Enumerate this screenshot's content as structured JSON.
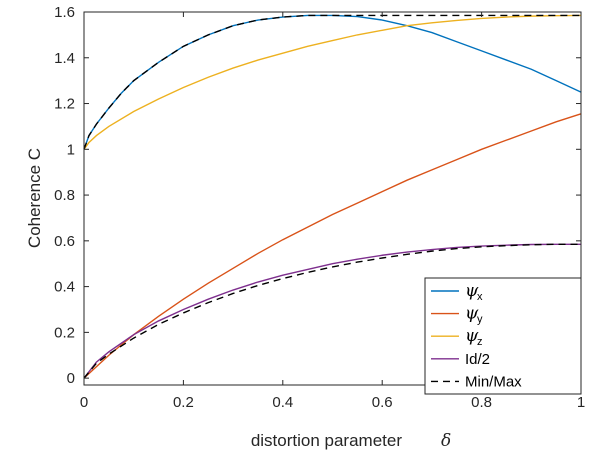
{
  "chart_data": {
    "type": "line",
    "xlabel": "distortion parameter",
    "xlabel_symbol": "δ",
    "ylabel": "Coherence C",
    "xlim": [
      0,
      1
    ],
    "ylim": [
      -0.03,
      1.6
    ],
    "x_ticks": [
      "0",
      "0.2",
      "0.4",
      "0.6",
      "0.8",
      "1"
    ],
    "y_ticks": [
      "0",
      "0.2",
      "0.4",
      "0.6",
      "0.8",
      "1",
      "1.2",
      "1.4",
      "1.6"
    ],
    "legend_position": "bottom-right",
    "grid": false,
    "series": [
      {
        "name": "ψ",
        "subscript": "x",
        "color": "#0072BD",
        "dash": "",
        "x": [
          0,
          0.01,
          0.025,
          0.05,
          0.075,
          0.1,
          0.15,
          0.2,
          0.25,
          0.3,
          0.35,
          0.4,
          0.45,
          0.5,
          0.55,
          0.6,
          0.65,
          0.7,
          0.75,
          0.8,
          0.85,
          0.9,
          0.95,
          1.0
        ],
        "y": [
          1.0,
          1.06,
          1.11,
          1.18,
          1.245,
          1.3,
          1.38,
          1.45,
          1.5,
          1.54,
          1.565,
          1.578,
          1.585,
          1.585,
          1.58,
          1.565,
          1.54,
          1.51,
          1.47,
          1.43,
          1.39,
          1.35,
          1.3,
          1.25
        ]
      },
      {
        "name": "ψ",
        "subscript": "y",
        "color": "#D95319",
        "dash": "",
        "x": [
          0,
          0.05,
          0.1,
          0.15,
          0.2,
          0.25,
          0.3,
          0.35,
          0.4,
          0.45,
          0.5,
          0.55,
          0.6,
          0.65,
          0.7,
          0.75,
          0.8,
          0.85,
          0.9,
          0.95,
          1.0
        ],
        "y": [
          0.0,
          0.1,
          0.19,
          0.27,
          0.345,
          0.415,
          0.48,
          0.545,
          0.605,
          0.66,
          0.715,
          0.765,
          0.815,
          0.865,
          0.91,
          0.955,
          1.0,
          1.04,
          1.08,
          1.12,
          1.155
        ]
      },
      {
        "name": "ψ",
        "subscript": "z",
        "color": "#EDB120",
        "dash": "",
        "x": [
          0,
          0.01,
          0.025,
          0.05,
          0.1,
          0.15,
          0.2,
          0.25,
          0.3,
          0.35,
          0.4,
          0.45,
          0.5,
          0.55,
          0.6,
          0.65,
          0.7,
          0.75,
          0.8,
          0.85,
          0.9,
          0.95,
          1.0
        ],
        "y": [
          1.0,
          1.03,
          1.06,
          1.1,
          1.165,
          1.22,
          1.27,
          1.315,
          1.355,
          1.39,
          1.42,
          1.45,
          1.475,
          1.5,
          1.52,
          1.54,
          1.553,
          1.563,
          1.572,
          1.578,
          1.582,
          1.584,
          1.585
        ]
      },
      {
        "name": "Id/2",
        "color": "#7E2F8E",
        "dash": "",
        "x": [
          0,
          0.025,
          0.05,
          0.1,
          0.15,
          0.2,
          0.25,
          0.3,
          0.35,
          0.4,
          0.45,
          0.5,
          0.55,
          0.6,
          0.65,
          0.7,
          0.75,
          0.8,
          0.85,
          0.9,
          0.95,
          1.0
        ],
        "y": [
          0.0,
          0.07,
          0.115,
          0.19,
          0.25,
          0.3,
          0.345,
          0.385,
          0.42,
          0.45,
          0.475,
          0.5,
          0.52,
          0.537,
          0.551,
          0.562,
          0.571,
          0.577,
          0.581,
          0.584,
          0.585,
          0.585
        ]
      },
      {
        "name": "Min/Max",
        "color": "#000000",
        "dash": "7,5",
        "x": [
          0,
          0.025,
          0.05,
          0.1,
          0.15,
          0.2,
          0.25,
          0.3,
          0.35,
          0.4,
          0.45,
          0.5,
          0.55,
          0.6,
          0.65,
          0.7,
          0.75,
          0.8,
          0.85,
          0.9,
          0.95,
          1.0
        ],
        "y": [
          0.0,
          0.065,
          0.105,
          0.175,
          0.235,
          0.285,
          0.33,
          0.37,
          0.405,
          0.435,
          0.462,
          0.486,
          0.507,
          0.525,
          0.541,
          0.555,
          0.566,
          0.574,
          0.579,
          0.583,
          0.585,
          0.585
        ]
      },
      {
        "name": "",
        "color": "#000000",
        "dash": "7,5",
        "legend": false,
        "x": [
          0,
          0.01,
          0.025,
          0.05,
          0.075,
          0.1,
          0.15,
          0.2,
          0.25,
          0.3,
          0.35,
          0.4,
          0.45,
          0.5,
          0.55,
          0.6,
          0.7,
          0.8,
          0.9,
          1.0
        ],
        "y": [
          1.0,
          1.06,
          1.11,
          1.18,
          1.245,
          1.3,
          1.38,
          1.45,
          1.5,
          1.54,
          1.565,
          1.578,
          1.585,
          1.585,
          1.585,
          1.585,
          1.585,
          1.585,
          1.585,
          1.585
        ]
      }
    ]
  }
}
